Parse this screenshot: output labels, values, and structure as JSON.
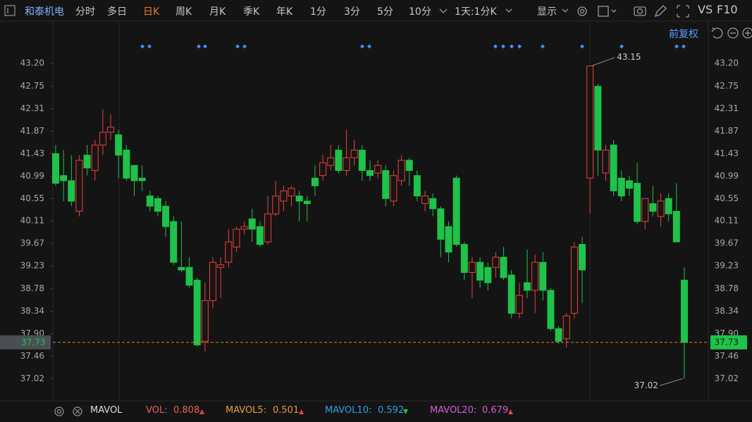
{
  "toolbar": {
    "stock": "和泰机电",
    "tabs": [
      "分时",
      "多日",
      "日K",
      "周K",
      "月K",
      "季K",
      "年K",
      "1分",
      "3分",
      "5分",
      "10分"
    ],
    "period": "1天:1分K",
    "display": "显示",
    "vs": "VS",
    "f10": "F10",
    "adjust": "前复权"
  },
  "chart_data": {
    "type": "candlestick",
    "up_color": "#e8433f",
    "down_color": "#1fc24a",
    "open": [
      41.43,
      41.0,
      40.9,
      40.3,
      41.4,
      41.1,
      41.6,
      41.85,
      41.8,
      41.5,
      41.2,
      40.95,
      40.6,
      40.55,
      40.4,
      40.1,
      39.2,
      39.2,
      38.95,
      37.75,
      38.55,
      39.2,
      39.3,
      39.6,
      39.95,
      40.15,
      40.0,
      39.7,
      40.25,
      40.5,
      40.6,
      40.6,
      40.5,
      40.95,
      41.0,
      41.2,
      41.5,
      41.1,
      41.35,
      41.5,
      41.1,
      41.05,
      41.1,
      40.5,
      40.9,
      41.3,
      41.0,
      40.45,
      40.55,
      40.35,
      40.0,
      40.95,
      39.65,
      39.1,
      39.3,
      39.2,
      39.2,
      39.4,
      39.05,
      38.3,
      38.9,
      38.75,
      39.3,
      38.75,
      38.0,
      37.8,
      38.3,
      39.65,
      40.95,
      42.75,
      41.05,
      41.6,
      40.95,
      40.9,
      40.85,
      40.1,
      40.45,
      40.2,
      40.55,
      40.3,
      38.95
    ],
    "high": [
      41.6,
      41.5,
      41.4,
      41.4,
      41.6,
      41.7,
      42.3,
      42.2,
      41.9,
      41.6,
      41.2,
      41.2,
      40.7,
      40.6,
      40.5,
      40.2,
      40.1,
      39.4,
      39.0,
      38.9,
      39.4,
      39.4,
      39.95,
      40.0,
      40.1,
      40.35,
      40.1,
      40.6,
      40.9,
      40.8,
      40.8,
      40.7,
      40.6,
      41.2,
      41.4,
      41.6,
      41.6,
      41.9,
      41.7,
      41.6,
      41.3,
      41.3,
      41.2,
      41.1,
      41.4,
      41.35,
      41.1,
      40.7,
      40.65,
      40.4,
      40.1,
      41.0,
      39.7,
      39.4,
      39.4,
      39.3,
      39.5,
      39.6,
      39.15,
      38.9,
      39.55,
      39.45,
      39.5,
      38.8,
      38.05,
      38.3,
      39.7,
      39.8,
      43.15,
      42.8,
      41.6,
      41.7,
      41.1,
      41.0,
      41.25,
      40.55,
      40.8,
      40.65,
      40.65,
      40.85,
      39.2
    ],
    "low": [
      40.8,
      40.5,
      40.4,
      40.2,
      41.0,
      40.9,
      41.4,
      41.7,
      40.95,
      40.9,
      40.6,
      40.7,
      40.3,
      40.2,
      39.8,
      39.25,
      39.1,
      38.8,
      37.65,
      37.55,
      38.4,
      38.6,
      39.2,
      39.5,
      39.85,
      39.7,
      39.6,
      39.65,
      40.2,
      40.3,
      40.4,
      40.1,
      40.1,
      40.6,
      40.9,
      41.1,
      41.05,
      41.0,
      41.2,
      40.9,
      40.9,
      40.95,
      40.4,
      40.4,
      40.8,
      40.8,
      40.5,
      40.3,
      40.2,
      39.4,
      39.3,
      39.6,
      38.95,
      38.6,
      38.8,
      38.75,
      39.0,
      38.95,
      38.2,
      38.2,
      38.6,
      38.3,
      38.55,
      37.95,
      37.7,
      37.63,
      38.2,
      38.5,
      40.25,
      41.0,
      40.9,
      40.6,
      40.5,
      40.6,
      40.05,
      39.95,
      40.2,
      40.0,
      40.1,
      39.7,
      37.02
    ],
    "close": [
      40.85,
      40.9,
      40.5,
      41.3,
      41.15,
      41.6,
      41.85,
      41.95,
      41.4,
      40.95,
      40.9,
      40.9,
      40.4,
      40.3,
      40.0,
      39.3,
      39.15,
      38.85,
      37.68,
      38.55,
      39.3,
      39.25,
      39.7,
      39.95,
      40.0,
      39.95,
      39.65,
      40.25,
      40.6,
      40.7,
      40.75,
      40.5,
      40.45,
      40.8,
      41.25,
      41.35,
      41.1,
      41.35,
      41.5,
      41.1,
      41.0,
      41.2,
      40.55,
      41.0,
      41.3,
      41.1,
      40.6,
      40.6,
      40.35,
      39.75,
      39.5,
      39.65,
      39.1,
      39.3,
      38.95,
      38.9,
      39.4,
      39.0,
      38.3,
      38.65,
      38.75,
      39.3,
      38.75,
      38.0,
      37.75,
      38.25,
      39.6,
      39.15,
      43.15,
      41.5,
      41.5,
      40.7,
      40.6,
      40.75,
      40.1,
      40.55,
      40.3,
      40.5,
      40.25,
      39.7,
      37.73
    ],
    "ylim": [
      36.61,
      43.96
    ],
    "yticks": [
      {
        "value": 43.2,
        "label": "43.20"
      },
      42.75,
      42.31,
      41.87,
      41.43,
      40.99,
      40.55,
      40.11,
      39.67,
      39.23,
      38.78,
      38.34,
      {
        "value": 37.9,
        "label": "37.90"
      },
      37.46,
      37.02
    ]
  },
  "indicator": {
    "name": "MAVOL",
    "items": [
      {
        "label": "VOL:",
        "value": 0.808
      },
      {
        "label": "MAVOL5:",
        "value": 0.501
      },
      {
        "label": "MAVOL10:",
        "value": 0.592
      },
      {
        "label": "MAVOL20:",
        "value": 0.679
      }
    ]
  }
}
